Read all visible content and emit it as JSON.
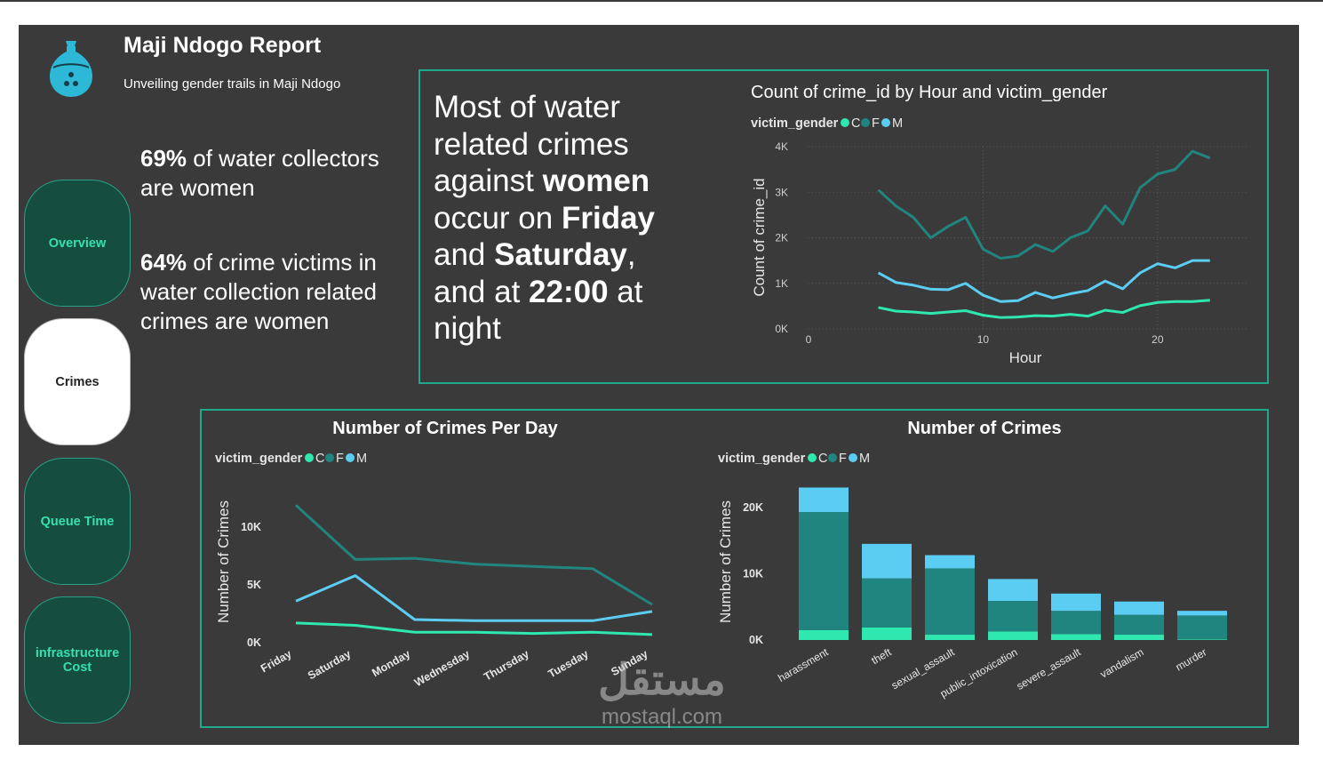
{
  "header": {
    "title": "Maji Ndogo Report",
    "subtitle": "Unveiling gender trails in Maji Ndogo"
  },
  "nav": [
    {
      "label": "Overview",
      "active": false
    },
    {
      "label": "Crimes",
      "active": true
    },
    {
      "label": "Queue Time",
      "active": false
    },
    {
      "label": "infrastructure Cost",
      "active": false
    }
  ],
  "stats": {
    "stat1_value": "69%",
    "stat1_text": " of water collectors are women",
    "stat2_value": "64%",
    "stat2_text": " of crime victims in water collection related crimes are women"
  },
  "headline": {
    "p1": "Most of water related crimes against ",
    "b1": "women",
    "p2": " occur on ",
    "b2": "Friday",
    "p3": " and ",
    "b3": "Saturday",
    "p4": ", and at ",
    "b4": "22:00",
    "p5": " at night"
  },
  "legend": {
    "title": "victim_gender",
    "items": [
      {
        "label": "C",
        "color": "#2ee8b0"
      },
      {
        "label": "F",
        "color": "#21857f"
      },
      {
        "label": "M",
        "color": "#5ccdf2"
      }
    ]
  },
  "watermark": {
    "arabic": "مستقل",
    "latin": "mostaql.com"
  },
  "chart_data": [
    {
      "type": "line",
      "title": "Count of crime_id by Hour and victim_gender",
      "xlabel": "Hour",
      "ylabel": "Count of crime_id",
      "xlim": [
        0,
        23
      ],
      "ylim": [
        0,
        4000
      ],
      "xticks": [
        "0",
        "10",
        "20"
      ],
      "yticks": [
        "0K",
        "1K",
        "2K",
        "3K",
        "4K"
      ],
      "legend_position": "top-left",
      "x": [
        4,
        5,
        6,
        7,
        8,
        9,
        10,
        11,
        12,
        13,
        14,
        15,
        16,
        17,
        18,
        19,
        20,
        21,
        22,
        23
      ],
      "series": [
        {
          "name": "F",
          "color": "#21857f",
          "values": [
            3050,
            2700,
            2450,
            2000,
            2250,
            2450,
            1750,
            1550,
            1600,
            1850,
            1700,
            2000,
            2150,
            2700,
            2300,
            3100,
            3400,
            3500,
            3900,
            3750
          ]
        },
        {
          "name": "M",
          "color": "#5ccdf2",
          "values": [
            1230,
            1020,
            960,
            870,
            860,
            1000,
            740,
            600,
            620,
            800,
            680,
            770,
            840,
            1050,
            880,
            1230,
            1430,
            1340,
            1500,
            1500
          ]
        },
        {
          "name": "C",
          "color": "#2ee8b0",
          "values": [
            470,
            390,
            370,
            340,
            370,
            400,
            300,
            250,
            260,
            290,
            280,
            320,
            280,
            410,
            360,
            510,
            580,
            600,
            600,
            630
          ]
        }
      ]
    },
    {
      "type": "line",
      "title": "Number of Crimes Per Day",
      "xlabel": "",
      "ylabel": "Number of Crimes",
      "ylim": [
        0,
        14000
      ],
      "yticks": [
        "0K",
        "5K",
        "10K"
      ],
      "legend_position": "top-left",
      "categories": [
        "Friday",
        "Saturday",
        "Monday",
        "Wednesday",
        "Thursday",
        "Tuesday",
        "Sunday"
      ],
      "series": [
        {
          "name": "F",
          "color": "#21857f",
          "values": [
            11900,
            7200,
            7300,
            6800,
            6600,
            6400,
            3300
          ]
        },
        {
          "name": "M",
          "color": "#5ccdf2",
          "values": [
            3600,
            5800,
            2000,
            1900,
            1900,
            1900,
            2700
          ]
        },
        {
          "name": "C",
          "color": "#2ee8b0",
          "values": [
            1700,
            1500,
            900,
            900,
            800,
            900,
            700
          ]
        }
      ]
    },
    {
      "type": "bar",
      "stacked": true,
      "title": "Number of Crimes",
      "xlabel": "",
      "ylabel": "Number of Crimes",
      "ylim": [
        0,
        24000
      ],
      "yticks": [
        "0K",
        "10K",
        "20K"
      ],
      "legend_position": "top-left",
      "categories": [
        "harassment",
        "theft",
        "sexual_assault",
        "public_intoxication",
        "severe_assault",
        "vandalism",
        "murder"
      ],
      "series": [
        {
          "name": "C",
          "color": "#2ee8b0",
          "values": [
            1500,
            1900,
            800,
            1300,
            900,
            800,
            100
          ]
        },
        {
          "name": "F",
          "color": "#21857f",
          "values": [
            17800,
            7400,
            10000,
            4600,
            3500,
            3000,
            3600
          ]
        },
        {
          "name": "M",
          "color": "#5ccdf2",
          "values": [
            3700,
            5200,
            2000,
            3300,
            2600,
            2000,
            700
          ]
        }
      ]
    }
  ]
}
